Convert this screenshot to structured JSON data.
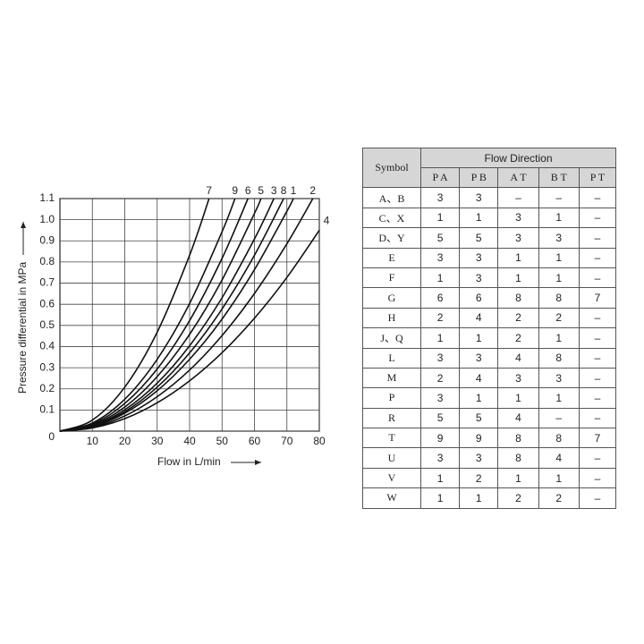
{
  "chart_data": {
    "type": "line",
    "xlabel": "Flow in L/min",
    "ylabel": "Pressure differential in MPa",
    "xlim": [
      0,
      80
    ],
    "xticks": [
      10,
      20,
      30,
      40,
      50,
      60,
      70,
      80
    ],
    "ylim": [
      0,
      1.1
    ],
    "yticks": [
      0,
      0.1,
      0.2,
      0.3,
      0.4,
      0.5,
      0.6,
      0.7,
      0.8,
      0.9,
      {
        "value": 1,
        "label": "1.0"
      },
      1.1
    ],
    "grid": true,
    "color": "#111111",
    "series": [
      {
        "name": "7",
        "x": [
          0,
          10,
          20,
          30,
          40,
          46
        ],
        "values": [
          0,
          0.052,
          0.208,
          0.468,
          0.832,
          1.1
        ]
      },
      {
        "name": "9",
        "x": [
          0,
          10,
          20,
          30,
          40,
          50,
          54
        ],
        "values": [
          0,
          0.038,
          0.151,
          0.34,
          0.604,
          0.943,
          1.1
        ]
      },
      {
        "name": "6",
        "x": [
          0,
          10,
          20,
          30,
          40,
          50,
          58
        ],
        "values": [
          0,
          0.033,
          0.131,
          0.294,
          0.523,
          0.817,
          1.1
        ]
      },
      {
        "name": "5",
        "x": [
          0,
          10,
          20,
          30,
          40,
          50,
          60,
          62
        ],
        "values": [
          0,
          0.029,
          0.114,
          0.258,
          0.458,
          0.715,
          1.03,
          1.1
        ]
      },
      {
        "name": "3",
        "x": [
          0,
          10,
          20,
          30,
          40,
          50,
          60,
          66
        ],
        "values": [
          0,
          0.025,
          0.101,
          0.227,
          0.404,
          0.631,
          0.909,
          1.1
        ]
      },
      {
        "name": "8",
        "x": [
          0,
          10,
          20,
          30,
          40,
          50,
          60,
          69
        ],
        "values": [
          0,
          0.023,
          0.092,
          0.208,
          0.37,
          0.578,
          0.832,
          1.1
        ]
      },
      {
        "name": "1",
        "x": [
          0,
          10,
          20,
          30,
          40,
          50,
          60,
          70,
          72
        ],
        "values": [
          0,
          0.021,
          0.085,
          0.191,
          0.34,
          0.53,
          0.764,
          1.04,
          1.1
        ]
      },
      {
        "name": "2",
        "x": [
          0,
          10,
          20,
          30,
          40,
          50,
          60,
          70,
          78
        ],
        "values": [
          0,
          0.018,
          0.072,
          0.163,
          0.289,
          0.452,
          0.651,
          0.886,
          1.1
        ]
      },
      {
        "name": "4",
        "x": [
          0,
          10,
          20,
          30,
          40,
          50,
          60,
          70,
          80
        ],
        "values": [
          0,
          0.015,
          0.059,
          0.134,
          0.238,
          0.371,
          0.534,
          0.727,
          0.95
        ]
      }
    ]
  },
  "table": {
    "symbol_header": "Symbol",
    "group_header": "Flow Direction",
    "columns": [
      "P  A",
      "P  B",
      "A  T",
      "B  T",
      "P  T"
    ],
    "rows": [
      [
        "A、B",
        "3",
        "3",
        "–",
        "–",
        "–"
      ],
      [
        "C、X",
        "1",
        "1",
        "3",
        "1",
        "–"
      ],
      [
        "D、Y",
        "5",
        "5",
        "3",
        "3",
        "–"
      ],
      [
        "E",
        "3",
        "3",
        "1",
        "1",
        "–"
      ],
      [
        "F",
        "1",
        "3",
        "1",
        "1",
        "–"
      ],
      [
        "G",
        "6",
        "6",
        "8",
        "8",
        "7"
      ],
      [
        "H",
        "2",
        "4",
        "2",
        "2",
        "–"
      ],
      [
        "J、Q",
        "1",
        "1",
        "2",
        "1",
        "–"
      ],
      [
        "L",
        "3",
        "3",
        "4",
        "8",
        "–"
      ],
      [
        "M",
        "2",
        "4",
        "3",
        "3",
        "–"
      ],
      [
        "P",
        "3",
        "1",
        "1",
        "1",
        "–"
      ],
      [
        "R",
        "5",
        "5",
        "4",
        "–",
        "–"
      ],
      [
        "T",
        "9",
        "9",
        "8",
        "8",
        "7"
      ],
      [
        "U",
        "3",
        "3",
        "8",
        "4",
        "–"
      ],
      [
        "V",
        "1",
        "2",
        "1",
        "1",
        "–"
      ],
      [
        "W",
        "1",
        "1",
        "2",
        "2",
        "–"
      ]
    ]
  }
}
